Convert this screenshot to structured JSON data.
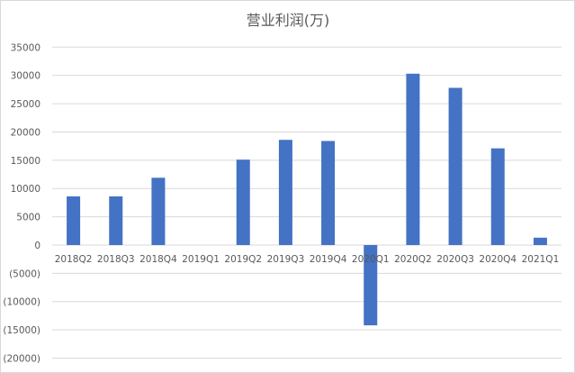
{
  "chart_data": {
    "type": "bar",
    "title": "营业利润(万)",
    "xlabel": "",
    "ylabel": "",
    "categories": [
      "2018Q2",
      "2018Q3",
      "2018Q4",
      "2019Q1",
      "2019Q2",
      "2019Q3",
      "2019Q4",
      "2020Q1",
      "2020Q2",
      "2020Q3",
      "2020Q4",
      "2021Q1"
    ],
    "values": [
      8600,
      8600,
      11900,
      0,
      15100,
      18600,
      18400,
      -14200,
      30300,
      27800,
      17100,
      1300
    ],
    "ylim": [
      -20000,
      35000
    ],
    "yticks": [
      35000,
      30000,
      25000,
      20000,
      15000,
      10000,
      5000,
      0,
      -5000,
      -10000,
      -15000,
      -20000
    ],
    "ytick_labels": [
      "35000",
      "30000",
      "25000",
      "20000",
      "15000",
      "10000",
      "5000",
      "0",
      "(5000)",
      "(10000)",
      "(15000)",
      "(20000)"
    ],
    "grid": true,
    "legend": "none",
    "colors": {
      "bar": "#4472c4",
      "negative_label": "#ff0000",
      "tick": "#595959",
      "grid": "#d9d9d9"
    }
  }
}
